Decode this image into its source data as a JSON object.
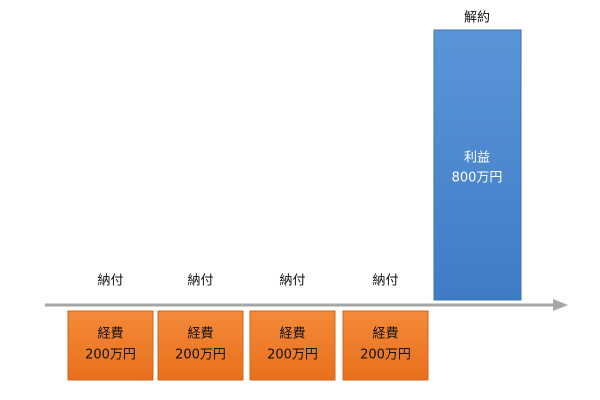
{
  "periods": [
    {
      "event": "納付",
      "label": "経費",
      "amount": "200万円"
    },
    {
      "event": "納付",
      "label": "経費",
      "amount": "200万円"
    },
    {
      "event": "納付",
      "label": "経費",
      "amount": "200万円"
    },
    {
      "event": "納付",
      "label": "経費",
      "amount": "200万円"
    }
  ],
  "exit": {
    "event": "解約",
    "label": "利益",
    "amount": "800万円"
  }
}
